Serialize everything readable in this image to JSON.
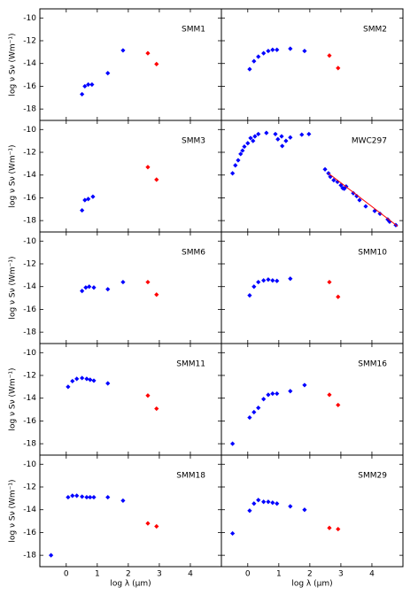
{
  "chart_data": {
    "type": "scatter",
    "xlabel": "log λ (μm)",
    "ylabel": "log ν Sν (Wm⁻¹)",
    "xlim": [
      -0.85,
      5
    ],
    "ylim": [
      -19,
      -9.2
    ],
    "xticks": [
      0,
      1,
      2,
      3,
      4
    ],
    "yticks": [
      -10,
      -12,
      -14,
      -16,
      -18
    ],
    "panels": [
      {
        "name": "SMM1",
        "series": [
          {
            "color": "#0000ff",
            "x": [
              0.51,
              0.6,
              0.71,
              0.83,
              1.34,
              1.83
            ],
            "y": [
              -16.7,
              -16.0,
              -15.85,
              -15.85,
              -14.85,
              -12.85
            ]
          },
          {
            "color": "#ff0000",
            "x": [
              2.63,
              2.91
            ],
            "y": [
              -13.1,
              -14.05
            ]
          }
        ]
      },
      {
        "name": "SMM2",
        "series": [
          {
            "color": "#0000ff",
            "x": [
              0.06,
              0.2,
              0.34,
              0.51,
              0.66,
              0.8,
              0.94,
              1.37,
              1.83
            ],
            "y": [
              -14.5,
              -13.8,
              -13.4,
              -13.1,
              -12.9,
              -12.8,
              -12.8,
              -12.7,
              -12.9
            ]
          },
          {
            "color": "#ff0000",
            "x": [
              2.63,
              2.91
            ],
            "y": [
              -13.3,
              -14.4
            ]
          }
        ]
      },
      {
        "name": "SMM3",
        "series": [
          {
            "color": "#0000ff",
            "x": [
              0.51,
              0.6,
              0.71,
              0.86
            ],
            "y": [
              -17.1,
              -16.2,
              -16.1,
              -15.9
            ]
          },
          {
            "color": "#ff0000",
            "x": [
              2.63,
              2.91
            ],
            "y": [
              -13.3,
              -14.4
            ]
          }
        ]
      },
      {
        "name": "MWC297",
        "series": [
          {
            "color": "#0000ff",
            "x": [
              -0.49,
              -0.4,
              -0.31,
              -0.23,
              -0.17,
              -0.11,
              0,
              0.09,
              0.17,
              0.23,
              0.34,
              0.6,
              0.89,
              0.97,
              1.09,
              1.11,
              1.23,
              1.37,
              1.74,
              1.97,
              2.49,
              2.6,
              2.66,
              2.77,
              2.89,
              3.0,
              3.06,
              3.11,
              3.17,
              3.4,
              3.51,
              3.6,
              3.8,
              4.09,
              4.26,
              4.51,
              4.57,
              4.77
            ],
            "y": [
              -13.85,
              -13.15,
              -12.7,
              -12.15,
              -11.85,
              -11.5,
              -11.2,
              -10.75,
              -11.0,
              -10.6,
              -10.4,
              -10.3,
              -10.4,
              -10.85,
              -10.6,
              -11.45,
              -11.0,
              -10.7,
              -10.45,
              -10.4,
              -13.5,
              -13.85,
              -14.15,
              -14.45,
              -14.6,
              -14.9,
              -15.15,
              -15.2,
              -15.0,
              -15.6,
              -15.85,
              -16.2,
              -16.75,
              -17.15,
              -17.4,
              -17.9,
              -18.1,
              -18.4
            ]
          },
          {
            "color": "#ff0000",
            "style": "line",
            "x": [
              2.6,
              4.83
            ],
            "y": [
              -13.85,
              -18.5
            ]
          }
        ]
      },
      {
        "name": "SMM6",
        "series": [
          {
            "color": "#0000ff",
            "x": [
              0.51,
              0.63,
              0.74,
              0.89,
              1.34,
              1.83
            ],
            "y": [
              -14.38,
              -14.08,
              -14.0,
              -14.08,
              -14.23,
              -13.6
            ]
          },
          {
            "color": "#ff0000",
            "x": [
              2.63,
              2.91
            ],
            "y": [
              -13.6,
              -14.7
            ]
          }
        ]
      },
      {
        "name": "SMM10",
        "series": [
          {
            "color": "#0000ff",
            "x": [
              0.06,
              0.2,
              0.34,
              0.51,
              0.66,
              0.8,
              0.94,
              1.37
            ],
            "y": [
              -14.77,
              -14.0,
              -13.6,
              -13.46,
              -13.38,
              -13.46,
              -13.5,
              -13.3
            ]
          },
          {
            "color": "#ff0000",
            "x": [
              2.63,
              2.91
            ],
            "y": [
              -13.6,
              -14.9
            ]
          }
        ]
      },
      {
        "name": "SMM11",
        "series": [
          {
            "color": "#0000ff",
            "x": [
              0.06,
              0.2,
              0.34,
              0.51,
              0.66,
              0.77,
              0.89,
              1.34
            ],
            "y": [
              -13.0,
              -12.5,
              -12.3,
              -12.23,
              -12.3,
              -12.38,
              -12.46,
              -12.7
            ]
          },
          {
            "color": "#ff0000",
            "x": [
              2.63,
              2.91
            ],
            "y": [
              -13.77,
              -14.92
            ]
          }
        ]
      },
      {
        "name": "SMM16",
        "series": [
          {
            "color": "#0000ff",
            "x": [
              -0.49,
              0.06,
              0.2,
              0.34,
              0.51,
              0.66,
              0.8,
              0.94,
              1.37,
              1.83
            ],
            "y": [
              -18.0,
              -15.7,
              -15.23,
              -14.85,
              -14.08,
              -13.7,
              -13.6,
              -13.6,
              -13.38,
              -12.85
            ]
          },
          {
            "color": "#ff0000",
            "x": [
              2.63,
              2.91
            ],
            "y": [
              -13.7,
              -14.6
            ]
          }
        ]
      },
      {
        "name": "SMM18",
        "series": [
          {
            "color": "#0000ff",
            "x": [
              -0.49,
              0.06,
              0.2,
              0.34,
              0.51,
              0.66,
              0.77,
              0.89,
              1.34,
              1.83
            ],
            "y": [
              -18.0,
              -12.9,
              -12.77,
              -12.77,
              -12.85,
              -12.9,
              -12.9,
              -12.9,
              -12.9,
              -13.2
            ]
          },
          {
            "color": "#ff0000",
            "x": [
              2.63,
              2.91
            ],
            "y": [
              -15.2,
              -15.46
            ]
          }
        ]
      },
      {
        "name": "SMM29",
        "series": [
          {
            "color": "#0000ff",
            "x": [
              -0.49,
              0.06,
              0.2,
              0.34,
              0.51,
              0.66,
              0.8,
              0.94,
              1.37,
              1.83
            ],
            "y": [
              -16.08,
              -14.08,
              -13.46,
              -13.15,
              -13.3,
              -13.3,
              -13.38,
              -13.46,
              -13.7,
              -14.0
            ]
          },
          {
            "color": "#ff0000",
            "x": [
              2.63,
              2.91
            ],
            "y": [
              -15.6,
              -15.7
            ]
          }
        ]
      }
    ]
  }
}
